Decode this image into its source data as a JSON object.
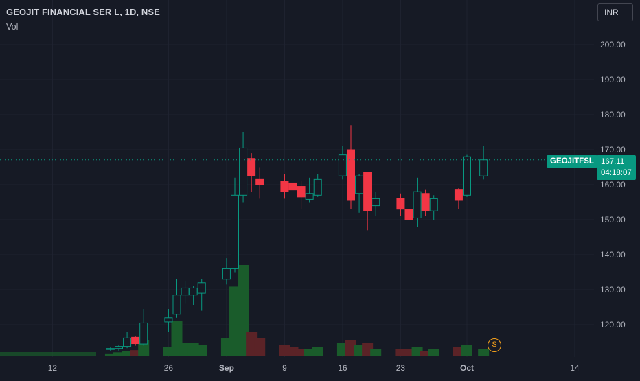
{
  "header": {
    "title": "GEOJIT FINANCIAL SER L, 1D, NSE",
    "volume_label": "Vol"
  },
  "currency_selector": {
    "label": "INR"
  },
  "last_price_badge": {
    "ticker": "GEOJITFSL",
    "price": "167.11",
    "countdown": "04:18:07"
  },
  "event_marker": {
    "label": "S",
    "color": "#f7a21b",
    "icon": "split-marker-icon"
  },
  "colors": {
    "background": "#161a25",
    "grid": "#1f2330",
    "up": "#089981",
    "down": "#f23645",
    "volume_up": "#1a5c2b",
    "volume_down": "#5b2327",
    "axis_text": "#b2b5be",
    "price_line": "#089981"
  },
  "chart_data": {
    "type": "candlestick",
    "price_axis": {
      "ticks": [
        "200.00",
        "190.00",
        "180.00",
        "170.00",
        "160.00",
        "150.00",
        "140.00",
        "130.00",
        "120.00"
      ],
      "tick_values": [
        200,
        190,
        180,
        170,
        160,
        150,
        140,
        130,
        120
      ]
    },
    "time_axis": {
      "ticks": [
        "12",
        "26",
        "Sep",
        "9",
        "16",
        "23",
        "Oct",
        "14"
      ],
      "tick_dates": [
        "2024-08-12",
        "2024-08-26",
        "2024-09-02",
        "2024-09-09",
        "2024-09-16",
        "2024-09-23",
        "2024-10-01",
        "2024-10-14"
      ]
    },
    "last_price": 167.11,
    "grid": true,
    "candles": [
      {
        "date": "2024-08-19",
        "o": 113.0,
        "h": 113.6,
        "l": 112.4,
        "c": 113.2,
        "v": 1
      },
      {
        "date": "2024-08-20",
        "o": 113.2,
        "h": 114.2,
        "l": 112.6,
        "c": 113.8,
        "v": 1.5
      },
      {
        "date": "2024-08-21",
        "o": 113.8,
        "h": 118.0,
        "l": 113.3,
        "c": 116.2,
        "v": 2
      },
      {
        "date": "2024-08-22",
        "o": 116.4,
        "h": 116.8,
        "l": 114.0,
        "c": 114.6,
        "v": 2.5
      },
      {
        "date": "2024-08-23",
        "o": 114.5,
        "h": 124.5,
        "l": 114.0,
        "c": 120.5,
        "v": 7
      },
      {
        "date": "2024-08-26",
        "o": 120.8,
        "h": 124.5,
        "l": 118.0,
        "c": 122.0,
        "v": 4
      },
      {
        "date": "2024-08-27",
        "o": 123.0,
        "h": 133.0,
        "l": 122.0,
        "c": 128.5,
        "v": 16
      },
      {
        "date": "2024-08-28",
        "o": 128.5,
        "h": 132.5,
        "l": 126.0,
        "c": 130.5,
        "v": 6
      },
      {
        "date": "2024-08-29",
        "o": 128.5,
        "h": 131.0,
        "l": 125.5,
        "c": 130.5,
        "v": 6
      },
      {
        "date": "2024-08-30",
        "o": 129.0,
        "h": 133.0,
        "l": 124.0,
        "c": 132.0,
        "v": 5
      },
      {
        "date": "2024-09-02",
        "o": 133.0,
        "h": 139.0,
        "l": 131.5,
        "c": 136.0,
        "v": 8
      },
      {
        "date": "2024-09-03",
        "o": 136.0,
        "h": 162.0,
        "l": 135.0,
        "c": 157.0,
        "v": 32
      },
      {
        "date": "2024-09-04",
        "o": 157.0,
        "h": 175.0,
        "l": 155.0,
        "c": 170.5,
        "v": 42
      },
      {
        "date": "2024-09-05",
        "o": 167.5,
        "h": 169.0,
        "l": 158.0,
        "c": 162.5,
        "v": 11
      },
      {
        "date": "2024-09-06",
        "o": 161.5,
        "h": 165.0,
        "l": 156.0,
        "c": 160.0,
        "v": 8
      },
      {
        "date": "2024-09-09",
        "o": 161.0,
        "h": 163.0,
        "l": 156.0,
        "c": 158.0,
        "v": 5
      },
      {
        "date": "2024-09-10",
        "o": 160.5,
        "h": 167.0,
        "l": 157.0,
        "c": 158.5,
        "v": 4
      },
      {
        "date": "2024-09-11",
        "o": 159.5,
        "h": 161.0,
        "l": 153.0,
        "c": 156.5,
        "v": 3
      },
      {
        "date": "2024-09-12",
        "o": 155.8,
        "h": 162.0,
        "l": 155.0,
        "c": 157.5,
        "v": 3
      },
      {
        "date": "2024-09-13",
        "o": 157.0,
        "h": 163.0,
        "l": 156.5,
        "c": 161.5,
        "v": 4
      },
      {
        "date": "2024-09-16",
        "o": 162.5,
        "h": 171.0,
        "l": 161.5,
        "c": 168.5,
        "v": 6
      },
      {
        "date": "2024-09-17",
        "o": 170.0,
        "h": 177.0,
        "l": 153.0,
        "c": 155.5,
        "v": 7
      },
      {
        "date": "2024-09-18",
        "o": 157.5,
        "h": 163.0,
        "l": 152.0,
        "c": 162.5,
        "v": 5
      },
      {
        "date": "2024-09-19",
        "o": 163.5,
        "h": 163.5,
        "l": 147.0,
        "c": 152.5,
        "v": 6
      },
      {
        "date": "2024-09-20",
        "o": 154.0,
        "h": 158.0,
        "l": 151.0,
        "c": 156.0,
        "v": 3
      },
      {
        "date": "2024-09-23",
        "o": 156.0,
        "h": 157.5,
        "l": 151.0,
        "c": 153.0,
        "v": 3
      },
      {
        "date": "2024-09-24",
        "o": 153.0,
        "h": 155.0,
        "l": 149.0,
        "c": 150.0,
        "v": 3
      },
      {
        "date": "2024-09-25",
        "o": 150.5,
        "h": 162.0,
        "l": 148.0,
        "c": 158.0,
        "v": 4
      },
      {
        "date": "2024-09-26",
        "o": 157.5,
        "h": 158.5,
        "l": 151.0,
        "c": 152.5,
        "v": 2
      },
      {
        "date": "2024-09-27",
        "o": 152.5,
        "h": 157.0,
        "l": 150.0,
        "c": 156.0,
        "v": 3
      },
      {
        "date": "2024-09-30",
        "o": 158.5,
        "h": 159.0,
        "l": 153.0,
        "c": 155.5,
        "v": 4
      },
      {
        "date": "2024-10-01",
        "o": 157.0,
        "h": 168.5,
        "l": 156.5,
        "c": 168.0,
        "v": 5
      },
      {
        "date": "2024-10-03",
        "o": 162.5,
        "h": 171.0,
        "l": 161.5,
        "c": 167.11,
        "v": 3
      }
    ]
  }
}
